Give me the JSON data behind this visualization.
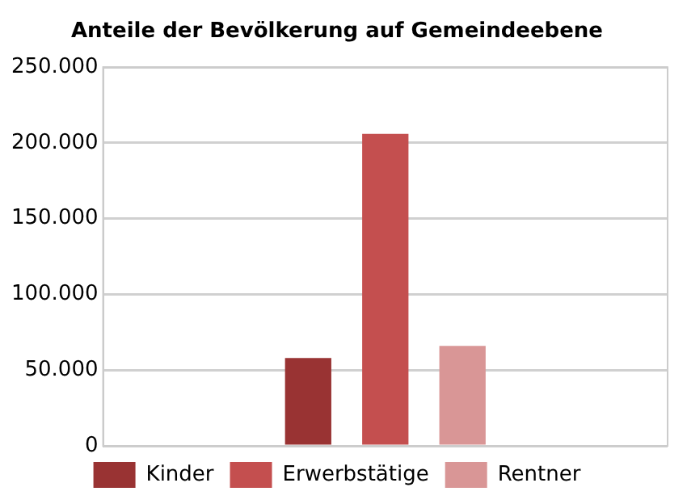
{
  "chart_data": {
    "type": "bar",
    "title": "Anteile der Bevölkerung auf Gemeindeebene",
    "categories": [
      null
    ],
    "series": [
      {
        "name": "Kinder",
        "color": "#993333",
        "values": [
          58000
        ]
      },
      {
        "name": "Erwerbstätige",
        "color": "#c44f4f",
        "values": [
          206000
        ]
      },
      {
        "name": "Rentner",
        "color": "#d99696",
        "values": [
          66000
        ]
      }
    ],
    "ylim": [
      0,
      250000
    ],
    "yticks": [
      0,
      {
        "value": 50000,
        "label": "50.000"
      },
      {
        "value": 100000,
        "label": "100.000"
      },
      {
        "value": 150000,
        "label": "150.000"
      },
      {
        "value": 200000,
        "label": "200.000"
      },
      {
        "value": 250000,
        "label": "250.000"
      }
    ],
    "grid": "y",
    "legend": "bottom"
  }
}
